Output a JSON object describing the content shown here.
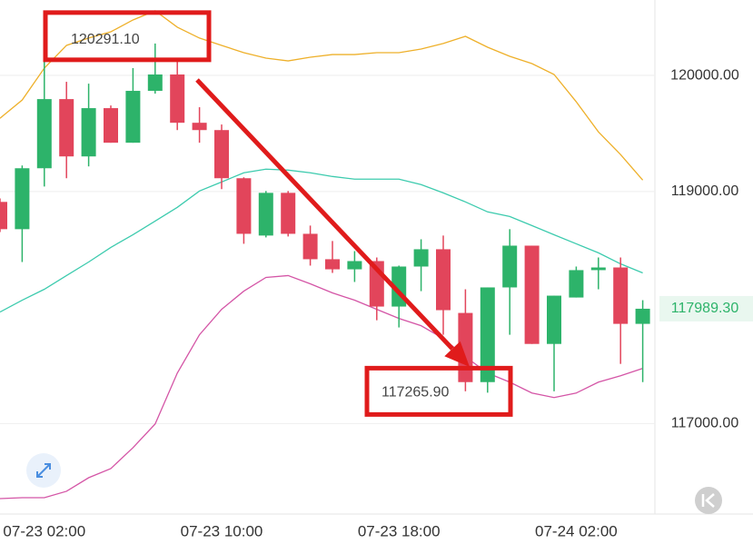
{
  "chart_data": {
    "type": "candlestick",
    "categories": [
      null,
      null,
      "07-23 02:00",
      null,
      null,
      null,
      null,
      null,
      null,
      null,
      "07-23 10:00",
      null,
      null,
      null,
      null,
      null,
      null,
      null,
      "07-23 18:00",
      null,
      null,
      null,
      null,
      null,
      null,
      null,
      "07-24 02:00",
      null,
      null,
      null
    ],
    "open": [
      118910,
      118675,
      119200,
      119796,
      119302,
      119718,
      119420,
      119867,
      120008,
      119592,
      119529,
      119114,
      118620,
      118988,
      118635,
      118416,
      118329,
      118400,
      118008,
      118353,
      118502,
      117953,
      117357,
      118173,
      118533,
      117686,
      118086,
      118322,
      118345,
      117859
    ],
    "high": [
      118940,
      119224,
      120291.1,
      119945,
      119929,
      119741,
      120063,
      120275,
      120118,
      119726,
      119577,
      119122,
      119004,
      119004,
      118706,
      118573,
      118486,
      118431,
      118361,
      118588,
      118620,
      118157,
      118173,
      118675,
      118533,
      118102,
      118353,
      118431,
      118431,
      118063
    ],
    "low": [
      118650,
      118392,
      119043,
      119114,
      119216,
      119420,
      119420,
      119843,
      119529,
      119420,
      119020,
      118549,
      118604,
      118612,
      118361,
      118298,
      118220,
      117890,
      117828,
      118141,
      117765,
      117278,
      117265.9,
      117765,
      117686,
      117278,
      118086,
      118157,
      117514,
      117357
    ],
    "close": [
      118675,
      119200,
      119796,
      119302,
      119718,
      119420,
      119867,
      120008,
      119592,
      119529,
      119114,
      118635,
      118988,
      118635,
      118416,
      118329,
      118400,
      118008,
      118353,
      118502,
      117977,
      117357,
      118173,
      118533,
      117686,
      118102,
      118322,
      118345,
      117859,
      117989.3
    ],
    "up_color": "#2db36a",
    "down_color": "#e2455b",
    "lines": [
      {
        "color": "#eeb02a",
        "values": [
          119631,
          119788,
          120063,
          120259,
          120322,
          120376,
          120478,
          120557,
          120416,
          120322,
          120259,
          120196,
          120149,
          120125,
          120157,
          120180,
          120180,
          120196,
          120196,
          120227,
          120275,
          120337,
          120243,
          120165,
          120102,
          120008,
          119773,
          119514,
          119318,
          119098
        ]
      },
      {
        "color": "#3dcbae",
        "values": [
          117961,
          118063,
          118157,
          118275,
          118392,
          118518,
          118627,
          118745,
          118863,
          119004,
          119082,
          119161,
          119192,
          119184,
          119161,
          119129,
          119106,
          119106,
          119106,
          119059,
          118988,
          118910,
          118824,
          118784,
          118706,
          118627,
          118549,
          118471,
          118376,
          118298
        ]
      },
      {
        "color": "#d455a6",
        "values": [
          116353,
          116361,
          116361,
          116416,
          116533,
          116612,
          116792,
          116996,
          117435,
          117765,
          117984,
          118141,
          118259,
          118275,
          118204,
          118126,
          118063,
          117984,
          117906,
          117843,
          117733,
          117576,
          117435,
          117357,
          117263,
          117224,
          117263,
          117357,
          117412,
          117475
        ]
      }
    ],
    "ylim": [
      116220,
      120650
    ],
    "yticks": [
      {
        "value": 117000,
        "label": "117000.00"
      },
      {
        "value": 119000,
        "label": "119000.00"
      },
      {
        "value": 120000,
        "label": "120000.00"
      }
    ],
    "grid": true,
    "high_marker": {
      "value": 120291.1,
      "label": "120291.10"
    },
    "low_marker": {
      "value": 117265.9,
      "label": "117265.90"
    },
    "last_price": {
      "value": 117989.3,
      "label": "117989.30"
    }
  }
}
